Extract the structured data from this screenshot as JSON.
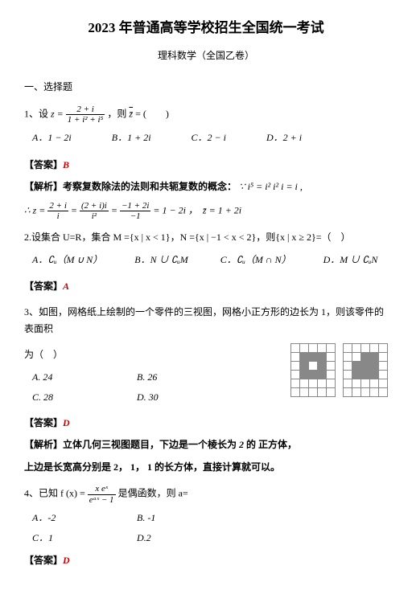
{
  "doc": {
    "title": "2023 年普通高等学校招生全国统一考试",
    "subtitle": "理科数学（全国乙卷）",
    "section1": "一、选择题"
  },
  "q1": {
    "stem_pre": "1、设 ",
    "stem_eq": "z =",
    "stem_mid": "，则",
    "stem_zbar": "z̄",
    "stem_post": " = (　　)",
    "frac_n": "2 + i",
    "frac_d": "1 + i² + i⁵",
    "A": "A．1 − 2i",
    "B": "B．1 + 2i",
    "C": "C．2 − i",
    "D": "D．2 + i",
    "ans_lbl": "【答案】",
    "ans_val": "B",
    "expl_lbl": "【解析】考察复数除法的法则和共轭复数的概念：",
    "expl_aside": "∵ i⁵ = i² i² i = i ,",
    "step1_pre": "∴ z = ",
    "step1_f1n": "2 + i",
    "step1_f1d": "i",
    "eq": " = ",
    "step1_f2n": "(2 + i)i",
    "step1_f2d": "i²",
    "step1_f3n": "−1 + 2i",
    "step1_f3d": "−1",
    "step1_post": " = 1 − 2i ，　z̄ = 1 + 2i"
  },
  "q2": {
    "stem": "2.设集合 U=R，集合 M ={x | x < 1}，N ={x | −1 < x < 2}，则{x | x ≥ 2}=（　）",
    "A": "A．∁ᵤ（M ∪ N）",
    "B": "B．N ∪ ∁ᵤM",
    "C": "C．∁ᵤ（M ∩ N）",
    "D": "D．M ∪ ∁ᵤN",
    "ans_lbl": "【答案】",
    "ans_val": "A"
  },
  "q3": {
    "stem1": "3、如图，网格纸上绘制的一个零件的三视图，网格小正方形的边长为 1，则该零件的表面积",
    "stem2": "为（　）",
    "A": "A. 24",
    "B": "B. 26",
    "C": "C. 28",
    "D": "D. 30",
    "ans_lbl": "【答案】",
    "ans_val": "D",
    "expl_lbl": "【解析】立体几何三视图题目，下边是一个棱长为 ",
    "two": "2",
    "expl_mid": " 的 正方体，",
    "step": "上边是长宽高分别是 2， 1， 1 的长方体，直接计算就可以。",
    "grid": {
      "cols": 5,
      "rows": 6,
      "left_fill": [
        [
          1,
          1
        ],
        [
          1,
          2
        ],
        [
          1,
          3
        ],
        [
          2,
          1
        ],
        [
          2,
          3
        ],
        [
          3,
          1
        ],
        [
          3,
          2
        ],
        [
          3,
          3
        ]
      ],
      "right_fill": [
        [
          1,
          2
        ],
        [
          1,
          3
        ],
        [
          2,
          1
        ],
        [
          2,
          2
        ],
        [
          2,
          3
        ],
        [
          3,
          1
        ],
        [
          3,
          2
        ],
        [
          3,
          3
        ]
      ],
      "empty_color": "#ffffff",
      "line_color": "#888888",
      "fill_color": "#888888"
    }
  },
  "q4": {
    "stem_pre": "4、已知 f (x) = ",
    "frac_n": "x eˣ",
    "frac_d": "eᵃˣ − 1",
    "stem_post": " 是偶函数，则 a=",
    "A": "A．-2",
    "B": "B. -1",
    "C": "C．1",
    "D": "D.2",
    "ans_lbl": "【答案】",
    "ans_val": "D"
  }
}
